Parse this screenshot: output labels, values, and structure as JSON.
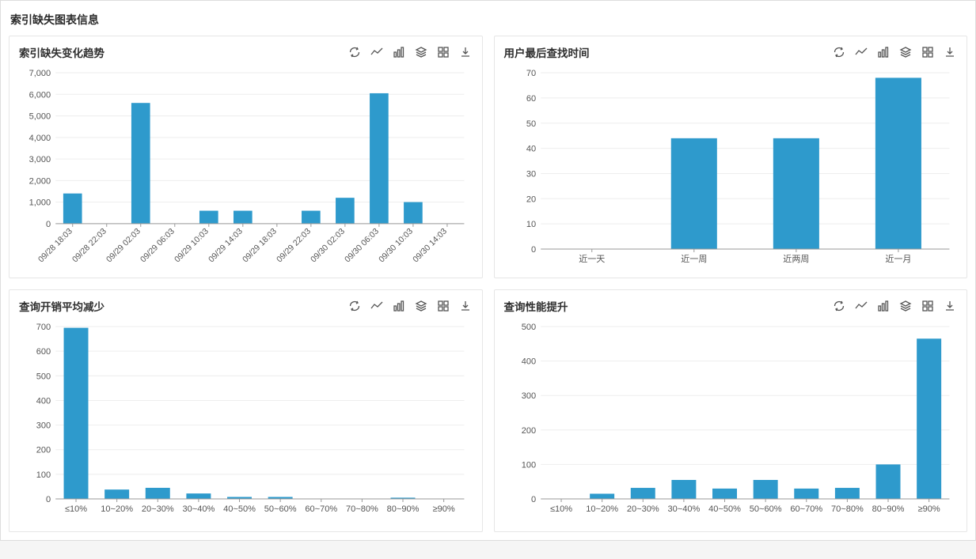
{
  "page_title": "索引缺失图表信息",
  "bar_color": "#2e9acc",
  "grid_color": "#eeeeee",
  "axis_color": "#999999",
  "panel_border": "#e6e6e6",
  "background": "#ffffff",
  "toolbar_icons": [
    "refresh",
    "line",
    "bars",
    "stack",
    "grid",
    "download"
  ],
  "charts": {
    "trend": {
      "title": "索引缺失变化趋势",
      "type": "bar",
      "categories": [
        "09/28 18:03",
        "09/28 22:03",
        "09/29 02:03",
        "09/29 06:03",
        "09/29 10:03",
        "09/29 14:03",
        "09/29 18:03",
        "09/29 22:03",
        "09/30 02:03",
        "09/30 06:03",
        "09/30 10:03",
        "09/30 14:03"
      ],
      "values": [
        1400,
        0,
        5600,
        0,
        600,
        600,
        0,
        600,
        1200,
        6050,
        1000,
        0
      ],
      "y_ticks": [
        0,
        1000,
        2000,
        3000,
        4000,
        5000,
        6000,
        7000
      ],
      "y_max": 7000,
      "rotate_x": true,
      "bar_width_ratio": 0.55
    },
    "last_lookup": {
      "title": "用户最后查找时间",
      "type": "bar",
      "categories": [
        "近一天",
        "近一周",
        "近两周",
        "近一月"
      ],
      "values": [
        0,
        44,
        44,
        68
      ],
      "y_ticks": [
        0,
        10,
        20,
        30,
        40,
        50,
        60,
        70
      ],
      "y_max": 70,
      "rotate_x": false,
      "bar_width_ratio": 0.45
    },
    "avg_cost_reduce": {
      "title": "查询开销平均减少",
      "type": "bar",
      "categories": [
        "≤10%",
        "10~20%",
        "20~30%",
        "30~40%",
        "40~50%",
        "50~60%",
        "60~70%",
        "70~80%",
        "80~90%",
        "≥90%"
      ],
      "values": [
        695,
        38,
        45,
        22,
        8,
        8,
        0,
        0,
        5,
        0
      ],
      "y_ticks": [
        0,
        100,
        200,
        300,
        400,
        500,
        600,
        700
      ],
      "y_max": 700,
      "rotate_x": false,
      "bar_width_ratio": 0.6
    },
    "perf_gain": {
      "title": "查询性能提升",
      "type": "bar",
      "categories": [
        "≤10%",
        "10~20%",
        "20~30%",
        "30~40%",
        "40~50%",
        "50~60%",
        "60~70%",
        "70~80%",
        "80~90%",
        "≥90%"
      ],
      "values": [
        0,
        15,
        32,
        55,
        30,
        55,
        30,
        32,
        100,
        465
      ],
      "y_ticks": [
        0,
        100,
        200,
        300,
        400,
        500
      ],
      "y_max": 500,
      "rotate_x": false,
      "bar_width_ratio": 0.6
    }
  },
  "panel_heights": {
    "trend": 300,
    "last_lookup": 300,
    "avg_cost_reduce": 295,
    "perf_gain": 295
  }
}
